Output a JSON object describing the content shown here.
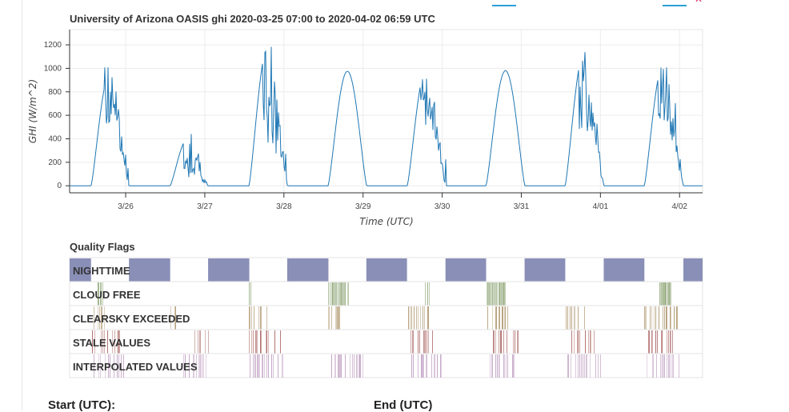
{
  "toolbar": {
    "accent_color": "#2a9fd6",
    "close_color": "#e0245e",
    "close_icon": "close-icon"
  },
  "chart_data": [
    {
      "type": "line",
      "title": "University of Arizona OASIS ghi 2020-03-25 07:00 to 2020-04-02 06:59 UTC",
      "xlabel": "Time (UTC)",
      "ylabel": "GHI (W/m^2)",
      "x_ticks": [
        "3/26",
        "3/27",
        "3/28",
        "3/29",
        "3/30",
        "3/31",
        "4/01",
        "4/02"
      ],
      "y_ticks": [
        "0",
        "200",
        "400",
        "600",
        "800",
        "1000",
        "1200"
      ],
      "xlim": [
        "2020-03-25 07:00",
        "2020-04-02 06:59"
      ],
      "ylim": [
        -60,
        1330
      ],
      "grid": true,
      "series": [
        {
          "color": "#1f77b4",
          "days": [
            {
              "date": "2020-03-25",
              "sunrise_hr": 13.5,
              "sunset_hr": 25.0,
              "peak": 960,
              "cloudy": true,
              "noise": 0.35
            },
            {
              "date": "2020-03-26",
              "sunrise_hr": 13.5,
              "sunset_hr": 25.0,
              "peak": 420,
              "cloudy": true,
              "noise": 0.6
            },
            {
              "date": "2020-03-27",
              "sunrise_hr": 13.4,
              "sunset_hr": 25.1,
              "peak": 1200,
              "cloudy": true,
              "noise": 0.55
            },
            {
              "date": "2020-03-28",
              "sunrise_hr": 13.4,
              "sunset_hr": 25.1,
              "peak": 975,
              "cloudy": false,
              "noise": 0
            },
            {
              "date": "2020-03-29",
              "sunrise_hr": 13.4,
              "sunset_hr": 25.1,
              "peak": 1000,
              "cloudy": true,
              "noise": 0.35
            },
            {
              "date": "2020-03-30",
              "sunrise_hr": 13.3,
              "sunset_hr": 25.1,
              "peak": 980,
              "cloudy": false,
              "noise": 0
            },
            {
              "date": "2020-03-31",
              "sunrise_hr": 13.3,
              "sunset_hr": 25.1,
              "peak": 1150,
              "cloudy": true,
              "noise": 0.45
            },
            {
              "date": "2020-04-01",
              "sunrise_hr": 13.3,
              "sunset_hr": 25.2,
              "peak": 1050,
              "cloudy": true,
              "noise": 0.4
            }
          ]
        }
      ]
    },
    {
      "type": "heatmap",
      "title": "Quality Flags",
      "xlim": [
        "2020-03-25 07:00",
        "2020-04-02 06:59"
      ],
      "rows": [
        {
          "label": "NIGHTTIME",
          "color": "#8a8fb8",
          "style": "solid",
          "spans": [
            [
              "2020-03-25 07:00",
              "2020-03-25 13:30"
            ],
            [
              "2020-03-26 01:00",
              "2020-03-26 13:30"
            ],
            [
              "2020-03-27 01:00",
              "2020-03-27 13:30"
            ],
            [
              "2020-03-28 01:00",
              "2020-03-28 13:30"
            ],
            [
              "2020-03-29 01:00",
              "2020-03-29 13:20"
            ],
            [
              "2020-03-30 01:00",
              "2020-03-30 13:20"
            ],
            [
              "2020-03-31 01:00",
              "2020-03-31 13:20"
            ],
            [
              "2020-04-01 01:00",
              "2020-04-01 13:20"
            ],
            [
              "2020-04-02 01:10",
              "2020-04-02 06:59"
            ]
          ]
        },
        {
          "label": "CLOUD FREE",
          "color": "#9aae84",
          "style": "dense",
          "spans": [
            [
              "2020-03-25 15:30",
              "2020-03-25 17:20"
            ],
            [
              "2020-03-27 13:30",
              "2020-03-27 14:00"
            ],
            [
              "2020-03-28 13:30",
              "2020-03-28 19:30"
            ],
            [
              "2020-03-29 19:00",
              "2020-03-29 20:00"
            ],
            [
              "2020-03-30 13:30",
              "2020-03-30 19:30"
            ],
            [
              "2020-04-01 18:00",
              "2020-04-01 21:30"
            ]
          ]
        },
        {
          "label": "CLEARSKY EXCEEDED",
          "color": "#b39c76",
          "style": "sparse",
          "spans": [
            [
              "2020-03-25 13:30",
              "2020-03-25 18:00"
            ],
            [
              "2020-03-26 13:30",
              "2020-03-26 15:30"
            ],
            [
              "2020-03-27 13:30",
              "2020-03-27 20:00"
            ],
            [
              "2020-03-28 13:30",
              "2020-03-28 18:40"
            ],
            [
              "2020-03-29 13:30",
              "2020-03-29 20:00"
            ],
            [
              "2020-03-30 13:30",
              "2020-03-30 20:00"
            ],
            [
              "2020-03-31 13:30",
              "2020-03-31 20:00"
            ],
            [
              "2020-04-01 13:30",
              "2020-04-02 01:00"
            ]
          ]
        },
        {
          "label": "STALE VALUES",
          "color": "#b0706e",
          "style": "sparse",
          "spans": [
            [
              "2020-03-25 13:30",
              "2020-03-25 22:30"
            ],
            [
              "2020-03-26 20:00",
              "2020-03-27 01:00"
            ],
            [
              "2020-03-27 13:30",
              "2020-03-27 23:00"
            ],
            [
              "2020-03-29 14:30",
              "2020-03-29 22:00"
            ],
            [
              "2020-03-30 14:30",
              "2020-03-30 23:00"
            ],
            [
              "2020-03-31 14:30",
              "2020-03-31 22:00"
            ],
            [
              "2020-04-01 14:30",
              "2020-04-01 22:00"
            ]
          ]
        },
        {
          "label": "INTERPOLATED VALUES",
          "color": "#c4a6c6",
          "style": "sparse",
          "spans": [
            [
              "2020-03-25 13:30",
              "2020-03-26 00:00"
            ],
            [
              "2020-03-26 17:00",
              "2020-03-27 01:00"
            ],
            [
              "2020-03-27 13:30",
              "2020-03-28 00:00"
            ],
            [
              "2020-03-28 14:00",
              "2020-03-29 00:00"
            ],
            [
              "2020-03-29 14:00",
              "2020-03-30 00:00"
            ],
            [
              "2020-03-30 14:00",
              "2020-03-31 00:00"
            ],
            [
              "2020-03-31 14:00",
              "2020-04-01 00:00"
            ],
            [
              "2020-04-01 14:00",
              "2020-04-02 00:00"
            ]
          ]
        }
      ]
    }
  ],
  "footer": {
    "start_label": "Start (UTC):",
    "end_label": "End (UTC)"
  }
}
